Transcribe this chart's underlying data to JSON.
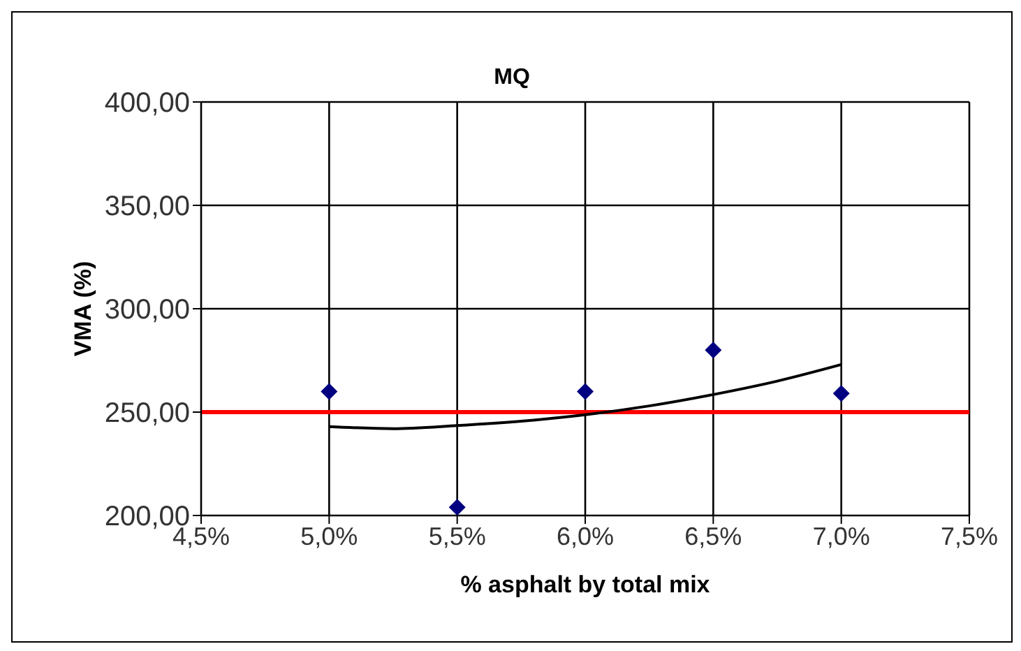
{
  "chart_data": {
    "type": "scatter",
    "title": "MQ",
    "xlabel": "% asphalt by total mix",
    "ylabel": "VMA (%)",
    "xlim": [
      4.5,
      7.5
    ],
    "xticks": [
      {
        "value": 4.5,
        "label": "4,5%"
      },
      {
        "value": 5.0,
        "label": "5,0%"
      },
      {
        "value": 5.5,
        "label": "5,5%"
      },
      {
        "value": 6.0,
        "label": "6,0%"
      },
      {
        "value": 6.5,
        "label": "6,5%"
      },
      {
        "value": 7.0,
        "label": "7,0%"
      },
      {
        "value": 7.5,
        "label": "7,5%"
      }
    ],
    "ylim": [
      200,
      400
    ],
    "yticks": [
      {
        "value": 200,
        "label": "200,00"
      },
      {
        "value": 250,
        "label": "250,00"
      },
      {
        "value": 300,
        "label": "300,00"
      },
      {
        "value": 350,
        "label": "350,00"
      },
      {
        "value": 400,
        "label": "400,00"
      }
    ],
    "grid": true,
    "legend": false,
    "series": [
      {
        "color": "#000080",
        "marker": "diamond",
        "x": [
          5.0,
          5.5,
          6.0,
          6.5,
          7.0
        ],
        "values": [
          260,
          204,
          260,
          280,
          259
        ]
      },
      {
        "type": "line",
        "color": "#000000",
        "marker": "none",
        "line_style": "solid",
        "x": [
          5.0,
          5.25,
          5.5,
          5.75,
          6.0,
          6.25,
          6.5,
          6.75,
          7.0
        ],
        "values": [
          243,
          242,
          243.5,
          245.6,
          248.7,
          253,
          258.5,
          265,
          273
        ]
      }
    ],
    "ref_lines": [
      {
        "axis": "y",
        "value": 250,
        "color": "#ff0000"
      }
    ]
  }
}
